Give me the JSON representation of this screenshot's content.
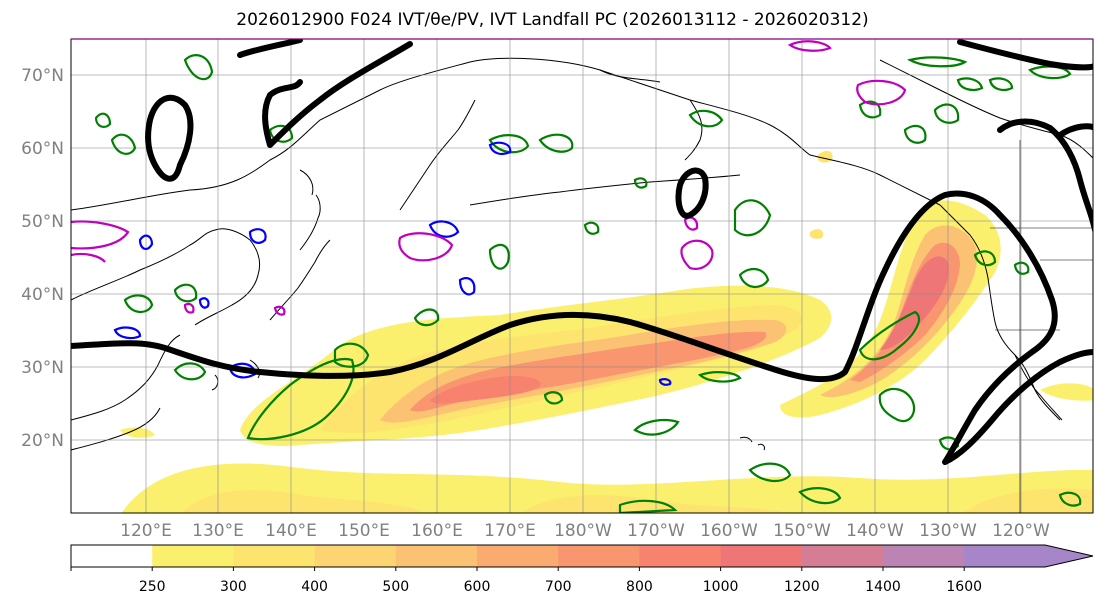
{
  "title": "2026012900 F024 IVT/θe/PV, IVT Landfall PC (2026013112 - 2026020312)",
  "lat_labels": [
    "70°N",
    "60°N",
    "50°N",
    "40°N",
    "30°N",
    "20°N"
  ],
  "lon_labels": [
    "120°E",
    "130°E",
    "140°E",
    "150°E",
    "160°E",
    "170°E",
    "180°W",
    "170°W",
    "160°W",
    "150°W",
    "140°W",
    "130°W",
    "120°W"
  ],
  "colorbar": {
    "ticks": [
      "250",
      "300",
      "400",
      "500",
      "600",
      "700",
      "800",
      "1000",
      "1200",
      "1400",
      "1600"
    ],
    "colors": [
      "#ffffff",
      "#fbf06e",
      "#fde46e",
      "#fdd472",
      "#fcc274",
      "#fbab70",
      "#f99670",
      "#f7836f",
      "#ee7676",
      "#d57d94",
      "#bb84b4",
      "#a686c9"
    ]
  },
  "contour_colors": {
    "ivt_landfall_pc": "#000000",
    "theta_e": "#008000",
    "pv_blue": "#0000ff",
    "pv_magenta": "#c000c0"
  }
}
